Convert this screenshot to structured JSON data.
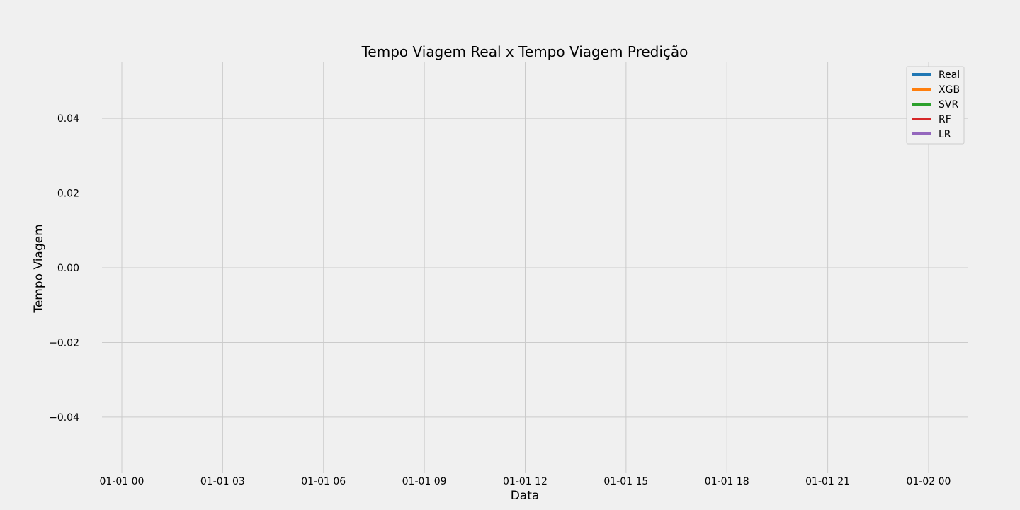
{
  "chart_data": {
    "type": "line",
    "title": "Tempo Viagem Real x Tempo Viagem Predição",
    "xlabel": "Data",
    "ylabel": "Tempo Viagem",
    "x_ticks": [
      "01-01 00",
      "01-01 03",
      "01-01 06",
      "01-01 09",
      "01-01 12",
      "01-01 15",
      "01-01 18",
      "01-01 21",
      "01-02 00"
    ],
    "y_ticks": [
      0.04,
      0.02,
      0.0,
      -0.02,
      -0.04
    ],
    "y_tick_labels": [
      "0.04",
      "0.02",
      "0.00",
      "−0.02",
      "−0.04"
    ],
    "ylim": [
      -0.055,
      0.055
    ],
    "grid": true,
    "legend_position": "top-right",
    "series": [
      {
        "name": "Real",
        "color": "#1f77b4",
        "values": []
      },
      {
        "name": "XGB",
        "color": "#ff7f0e",
        "values": []
      },
      {
        "name": "SVR",
        "color": "#2ca02c",
        "values": []
      },
      {
        "name": "RF",
        "color": "#d62728",
        "values": []
      },
      {
        "name": "LR",
        "color": "#9467bd",
        "values": []
      }
    ]
  }
}
